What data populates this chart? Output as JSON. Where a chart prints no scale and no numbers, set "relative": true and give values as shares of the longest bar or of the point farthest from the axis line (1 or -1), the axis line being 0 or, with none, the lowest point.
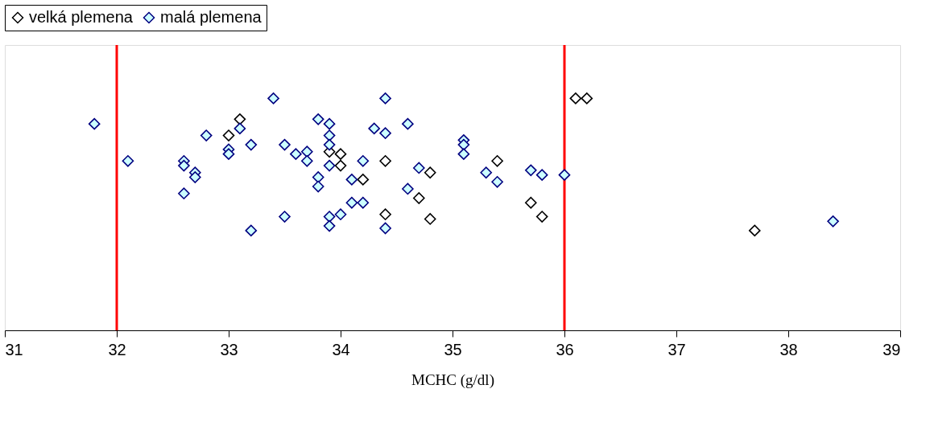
{
  "chart_data": {
    "type": "scatter",
    "relative": true,
    "xlabel": "MCHC (g/dl)",
    "xlim": [
      31,
      39
    ],
    "xticks": [
      31,
      32,
      33,
      34,
      35,
      36,
      37,
      38,
      39
    ],
    "grid": false,
    "legend": "top",
    "marker": "diamond",
    "ref_lines": [
      {
        "axis": "x",
        "value": 32,
        "color": "#ff0000"
      },
      {
        "axis": "x",
        "value": 36,
        "color": "#ff0000"
      }
    ],
    "series": [
      {
        "name": "velká plemena",
        "color": "#000000",
        "x": [
          33.1,
          33.0,
          33.9,
          34.0,
          34.0,
          34.2,
          34.4,
          34.8,
          34.7,
          34.4,
          34.8,
          35.4,
          35.7,
          35.8,
          36.1,
          36.2,
          37.7
        ],
        "values": [
          0.91,
          0.84,
          0.77,
          0.76,
          0.71,
          0.65,
          0.73,
          0.68,
          0.57,
          0.5,
          0.48,
          0.73,
          0.55,
          0.49,
          1.0,
          1.0,
          0.43
        ]
      },
      {
        "name": "malá plemena",
        "color": "#000080",
        "x": [
          31.8,
          32.1,
          32.6,
          32.6,
          32.7,
          32.7,
          32.6,
          32.8,
          33.1,
          33.0,
          33.0,
          33.2,
          33.4,
          33.5,
          33.6,
          33.7,
          33.7,
          33.8,
          33.9,
          33.9,
          33.9,
          33.9,
          33.8,
          33.8,
          33.2,
          33.5,
          33.9,
          33.9,
          34.0,
          34.1,
          34.4,
          34.3,
          34.4,
          34.6,
          34.2,
          34.1,
          34.2,
          34.7,
          34.6,
          34.4,
          35.1,
          35.1,
          35.1,
          35.3,
          35.4,
          35.7,
          35.8,
          36.0,
          38.4
        ],
        "values": [
          0.89,
          0.73,
          0.73,
          0.71,
          0.68,
          0.66,
          0.59,
          0.84,
          0.87,
          0.78,
          0.76,
          0.8,
          1.0,
          0.8,
          0.76,
          0.77,
          0.73,
          0.91,
          0.89,
          0.84,
          0.8,
          0.71,
          0.66,
          0.62,
          0.43,
          0.49,
          0.49,
          0.45,
          0.5,
          0.65,
          1.0,
          0.87,
          0.85,
          0.89,
          0.73,
          0.55,
          0.55,
          0.7,
          0.61,
          0.44,
          0.82,
          0.8,
          0.76,
          0.68,
          0.64,
          0.69,
          0.67,
          0.67,
          0.47
        ]
      }
    ]
  }
}
